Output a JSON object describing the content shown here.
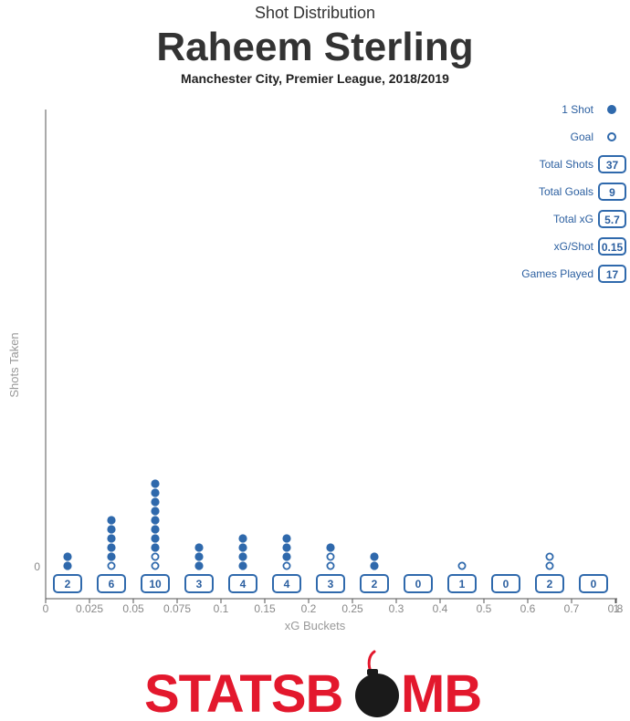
{
  "header": {
    "supertitle": "Shot Distribution",
    "title": "Raheem Sterling",
    "subtitle": "Manchester City, Premier League, 2018/2019"
  },
  "legend": {
    "shot_label": "1 Shot",
    "goal_label": "Goal"
  },
  "stats": [
    {
      "label": "Total Shots",
      "value": "37"
    },
    {
      "label": "Total Goals",
      "value": "9"
    },
    {
      "label": "Total xG",
      "value": "5.7"
    },
    {
      "label": "xG/Shot",
      "value": "0.15"
    },
    {
      "label": "Games Played",
      "value": "17"
    }
  ],
  "brand": {
    "part1": "STATSB",
    "part2": "MB"
  },
  "colors": {
    "accent": "#2f69ac",
    "brand_red": "#e3182d",
    "axis": "#555555",
    "bomb": "#1a1a1a"
  },
  "chart_data": {
    "type": "scatter",
    "xlabel": "xG Buckets",
    "ylabel": "Shots Taken",
    "xlim": [
      0,
      1
    ],
    "y_tick_labels": [
      "0"
    ],
    "x_tick_labels": [
      "0",
      "0.025",
      "0.05",
      "0.075",
      "0.1",
      "0.15",
      "0.2",
      "0.25",
      "0.3",
      "0.4",
      "0.5",
      "0.6",
      "0.7",
      "0.8",
      "1"
    ],
    "buckets": [
      {
        "range": "0-0.025",
        "shots": 2,
        "goals": 0
      },
      {
        "range": "0.025-0.05",
        "shots": 6,
        "goals": 1
      },
      {
        "range": "0.05-0.075",
        "shots": 10,
        "goals": 2
      },
      {
        "range": "0.075-0.1",
        "shots": 3,
        "goals": 0
      },
      {
        "range": "0.1-0.15",
        "shots": 4,
        "goals": 0
      },
      {
        "range": "0.15-0.2",
        "shots": 4,
        "goals": 1
      },
      {
        "range": "0.2-0.25",
        "shots": 3,
        "goals": 2
      },
      {
        "range": "0.25-0.3",
        "shots": 2,
        "goals": 0
      },
      {
        "range": "0.3-0.4",
        "shots": 0,
        "goals": 0
      },
      {
        "range": "0.4-0.5",
        "shots": 1,
        "goals": 1
      },
      {
        "range": "0.5-0.6",
        "shots": 0,
        "goals": 0
      },
      {
        "range": "0.6-0.7",
        "shots": 2,
        "goals": 2
      },
      {
        "range": "0.7-0.8",
        "shots": 0,
        "goals": 0
      }
    ],
    "grid": false,
    "legend_position": "top-right"
  }
}
